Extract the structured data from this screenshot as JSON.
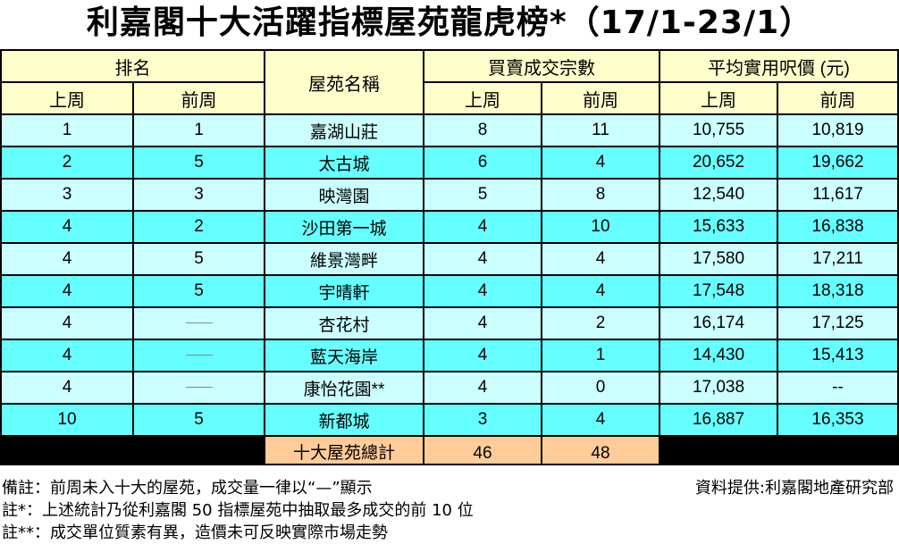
{
  "title": "利嘉閣十大活躍指標屋苑龍虎榜*（17/1-23/1）",
  "headers": {
    "rank": "排名",
    "estate": "屋苑名稱",
    "volume": "買賣成交宗數",
    "price": "平均實用呎價 (元)",
    "last_week": "上周",
    "prev_week": "前周"
  },
  "rows": [
    {
      "rank_last": "1",
      "rank_prev": "1",
      "estate": "嘉湖山莊",
      "vol_last": "8",
      "vol_prev": "11",
      "price_last": "10,755",
      "price_prev": "10,819"
    },
    {
      "rank_last": "2",
      "rank_prev": "5",
      "estate": "太古城",
      "vol_last": "6",
      "vol_prev": "4",
      "price_last": "20,652",
      "price_prev": "19,662"
    },
    {
      "rank_last": "3",
      "rank_prev": "3",
      "estate": "映灣園",
      "vol_last": "5",
      "vol_prev": "8",
      "price_last": "12,540",
      "price_prev": "11,617"
    },
    {
      "rank_last": "4",
      "rank_prev": "2",
      "estate": "沙田第一城",
      "vol_last": "4",
      "vol_prev": "10",
      "price_last": "15,633",
      "price_prev": "16,838"
    },
    {
      "rank_last": "4",
      "rank_prev": "5",
      "estate": "維景灣畔",
      "vol_last": "4",
      "vol_prev": "4",
      "price_last": "17,580",
      "price_prev": "17,211"
    },
    {
      "rank_last": "4",
      "rank_prev": "5",
      "estate": "宇晴軒",
      "vol_last": "4",
      "vol_prev": "4",
      "price_last": "17,548",
      "price_prev": "18,318"
    },
    {
      "rank_last": "4",
      "rank_prev": "—",
      "estate": "杏花村",
      "vol_last": "4",
      "vol_prev": "2",
      "price_last": "16,174",
      "price_prev": "17,125"
    },
    {
      "rank_last": "4",
      "rank_prev": "—",
      "estate": "藍天海岸",
      "vol_last": "4",
      "vol_prev": "1",
      "price_last": "14,430",
      "price_prev": "15,413"
    },
    {
      "rank_last": "4",
      "rank_prev": "—",
      "estate": "康怡花園**",
      "vol_last": "4",
      "vol_prev": "0",
      "price_last": "17,038",
      "price_prev": "--"
    },
    {
      "rank_last": "10",
      "rank_prev": "5",
      "estate": "新都城",
      "vol_last": "3",
      "vol_prev": "4",
      "price_last": "16,887",
      "price_prev": "16,353"
    }
  ],
  "total": {
    "label": "十大屋苑總計",
    "vol_last": "46",
    "vol_prev": "48"
  },
  "notes": [
    "備註：前周未入十大的屋苑，成交量一律以“—”顯示",
    "註*：上述統計乃從利嘉閣 50 指標屋苑中抽取最多成交的前 10 位",
    "註**：成交單位質素有異，造價未可反映實際市場走勢"
  ],
  "source": "資料提供:利嘉閣地產研究部",
  "colors": {
    "header": "#ffffcc",
    "row_light": "#ccffff",
    "row_dark": "#66ffff",
    "total": "#ffcc99"
  }
}
